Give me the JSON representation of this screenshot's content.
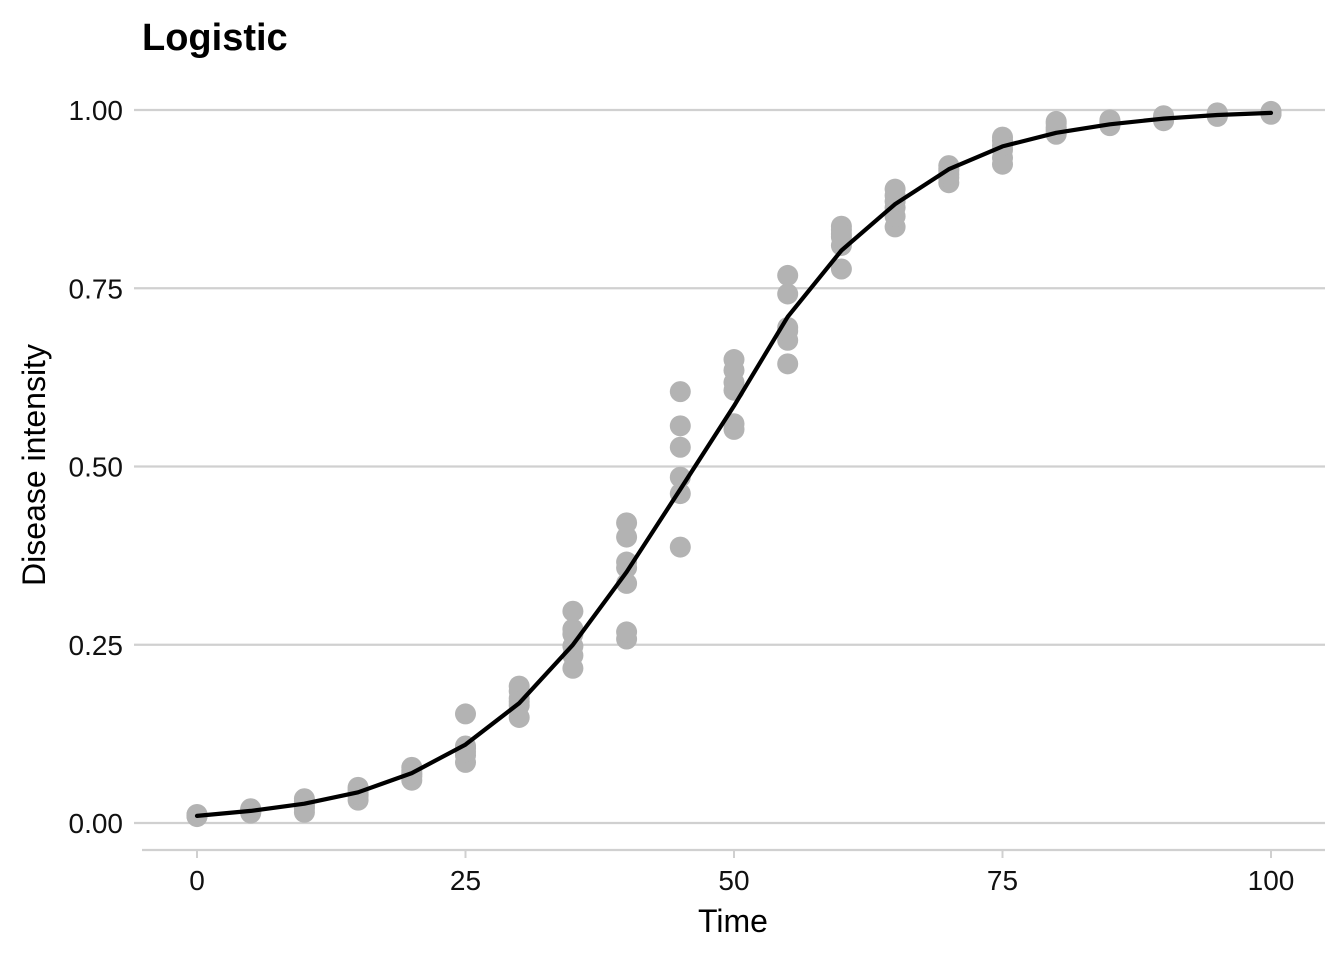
{
  "chart_data": {
    "type": "scatter",
    "title": "Logistic",
    "xlabel": "Time",
    "ylabel": "Disease intensity",
    "xlim": [
      -5,
      105
    ],
    "ylim": [
      -0.04,
      1.04
    ],
    "x_ticks": [
      0,
      25,
      50,
      75,
      100
    ],
    "x_tick_labels": [
      "0",
      "25",
      "50",
      "75",
      "100"
    ],
    "y_ticks": [
      0,
      0.25,
      0.5,
      0.75,
      1.0
    ],
    "y_tick_labels": [
      "0.00",
      "0.25",
      "0.50",
      "0.75",
      "1.00"
    ],
    "grid": "horizontal",
    "colors": {
      "points": "#b3b3b3",
      "line": "#000000",
      "grid": "#d0d0d0"
    },
    "points": [
      [
        0,
        0.01
      ],
      [
        0,
        0.012
      ],
      [
        0,
        0.011
      ],
      [
        0,
        0.009
      ],
      [
        0,
        0.01
      ],
      [
        0,
        0.011
      ],
      [
        5,
        0.014
      ],
      [
        5,
        0.016
      ],
      [
        5,
        0.019
      ],
      [
        5,
        0.02
      ],
      [
        5,
        0.017
      ],
      [
        5,
        0.015
      ],
      [
        10,
        0.015
      ],
      [
        10,
        0.023
      ],
      [
        10,
        0.03
      ],
      [
        10,
        0.034
      ],
      [
        10,
        0.026
      ],
      [
        10,
        0.02
      ],
      [
        15,
        0.032
      ],
      [
        15,
        0.038
      ],
      [
        15,
        0.043
      ],
      [
        15,
        0.047
      ],
      [
        15,
        0.05
      ],
      [
        15,
        0.04
      ],
      [
        20,
        0.06
      ],
      [
        20,
        0.065
      ],
      [
        20,
        0.07
      ],
      [
        20,
        0.074
      ],
      [
        20,
        0.078
      ],
      [
        20,
        0.068
      ],
      [
        25,
        0.085
      ],
      [
        25,
        0.095
      ],
      [
        25,
        0.105
      ],
      [
        25,
        0.108
      ],
      [
        25,
        0.153
      ],
      [
        25,
        0.1
      ],
      [
        30,
        0.148
      ],
      [
        30,
        0.165
      ],
      [
        30,
        0.175
      ],
      [
        30,
        0.185
      ],
      [
        30,
        0.192
      ],
      [
        30,
        0.17
      ],
      [
        35,
        0.217
      ],
      [
        35,
        0.235
      ],
      [
        35,
        0.248
      ],
      [
        35,
        0.265
      ],
      [
        35,
        0.272
      ],
      [
        35,
        0.297
      ],
      [
        40,
        0.258
      ],
      [
        40,
        0.268
      ],
      [
        40,
        0.336
      ],
      [
        40,
        0.358
      ],
      [
        40,
        0.366
      ],
      [
        40,
        0.401
      ],
      [
        40,
        0.421
      ],
      [
        45,
        0.387
      ],
      [
        45,
        0.462
      ],
      [
        45,
        0.485
      ],
      [
        45,
        0.527
      ],
      [
        45,
        0.557
      ],
      [
        45,
        0.605
      ],
      [
        50,
        0.552
      ],
      [
        50,
        0.56
      ],
      [
        50,
        0.607
      ],
      [
        50,
        0.618
      ],
      [
        50,
        0.635
      ],
      [
        50,
        0.65
      ],
      [
        55,
        0.644
      ],
      [
        55,
        0.677
      ],
      [
        55,
        0.69
      ],
      [
        55,
        0.742
      ],
      [
        55,
        0.768
      ],
      [
        55,
        0.695
      ],
      [
        60,
        0.777
      ],
      [
        60,
        0.81
      ],
      [
        60,
        0.822
      ],
      [
        60,
        0.832
      ],
      [
        60,
        0.837
      ],
      [
        60,
        0.826
      ],
      [
        65,
        0.836
      ],
      [
        65,
        0.851
      ],
      [
        65,
        0.863
      ],
      [
        65,
        0.872
      ],
      [
        65,
        0.88
      ],
      [
        65,
        0.889
      ],
      [
        70,
        0.898
      ],
      [
        70,
        0.905
      ],
      [
        70,
        0.915
      ],
      [
        70,
        0.922
      ],
      [
        70,
        0.918
      ],
      [
        70,
        0.91
      ],
      [
        75,
        0.924
      ],
      [
        75,
        0.933
      ],
      [
        75,
        0.944
      ],
      [
        75,
        0.957
      ],
      [
        75,
        0.962
      ],
      [
        75,
        0.95
      ],
      [
        80,
        0.966
      ],
      [
        80,
        0.97
      ],
      [
        80,
        0.976
      ],
      [
        80,
        0.981
      ],
      [
        80,
        0.984
      ],
      [
        80,
        0.973
      ],
      [
        85,
        0.978
      ],
      [
        85,
        0.981
      ],
      [
        85,
        0.984
      ],
      [
        85,
        0.986
      ],
      [
        85,
        0.983
      ],
      [
        85,
        0.98
      ],
      [
        90,
        0.985
      ],
      [
        90,
        0.988
      ],
      [
        90,
        0.99
      ],
      [
        90,
        0.992
      ],
      [
        90,
        0.987
      ],
      [
        90,
        0.989
      ],
      [
        95,
        0.991
      ],
      [
        95,
        0.993
      ],
      [
        95,
        0.995
      ],
      [
        95,
        0.996
      ],
      [
        95,
        0.994
      ],
      [
        95,
        0.992
      ],
      [
        100,
        0.994
      ],
      [
        100,
        0.995
      ],
      [
        100,
        0.997
      ],
      [
        100,
        0.998
      ],
      [
        100,
        0.996
      ],
      [
        100,
        0.995
      ]
    ],
    "fitted_line": {
      "x": [
        0,
        5,
        10,
        15,
        20,
        25,
        30,
        35,
        40,
        45,
        50,
        55,
        60,
        65,
        70,
        75,
        80,
        85,
        90,
        95,
        100
      ],
      "y": [
        0.01,
        0.017,
        0.027,
        0.043,
        0.07,
        0.11,
        0.168,
        0.25,
        0.352,
        0.468,
        0.585,
        0.71,
        0.803,
        0.868,
        0.917,
        0.949,
        0.968,
        0.98,
        0.988,
        0.993,
        0.996
      ]
    }
  }
}
